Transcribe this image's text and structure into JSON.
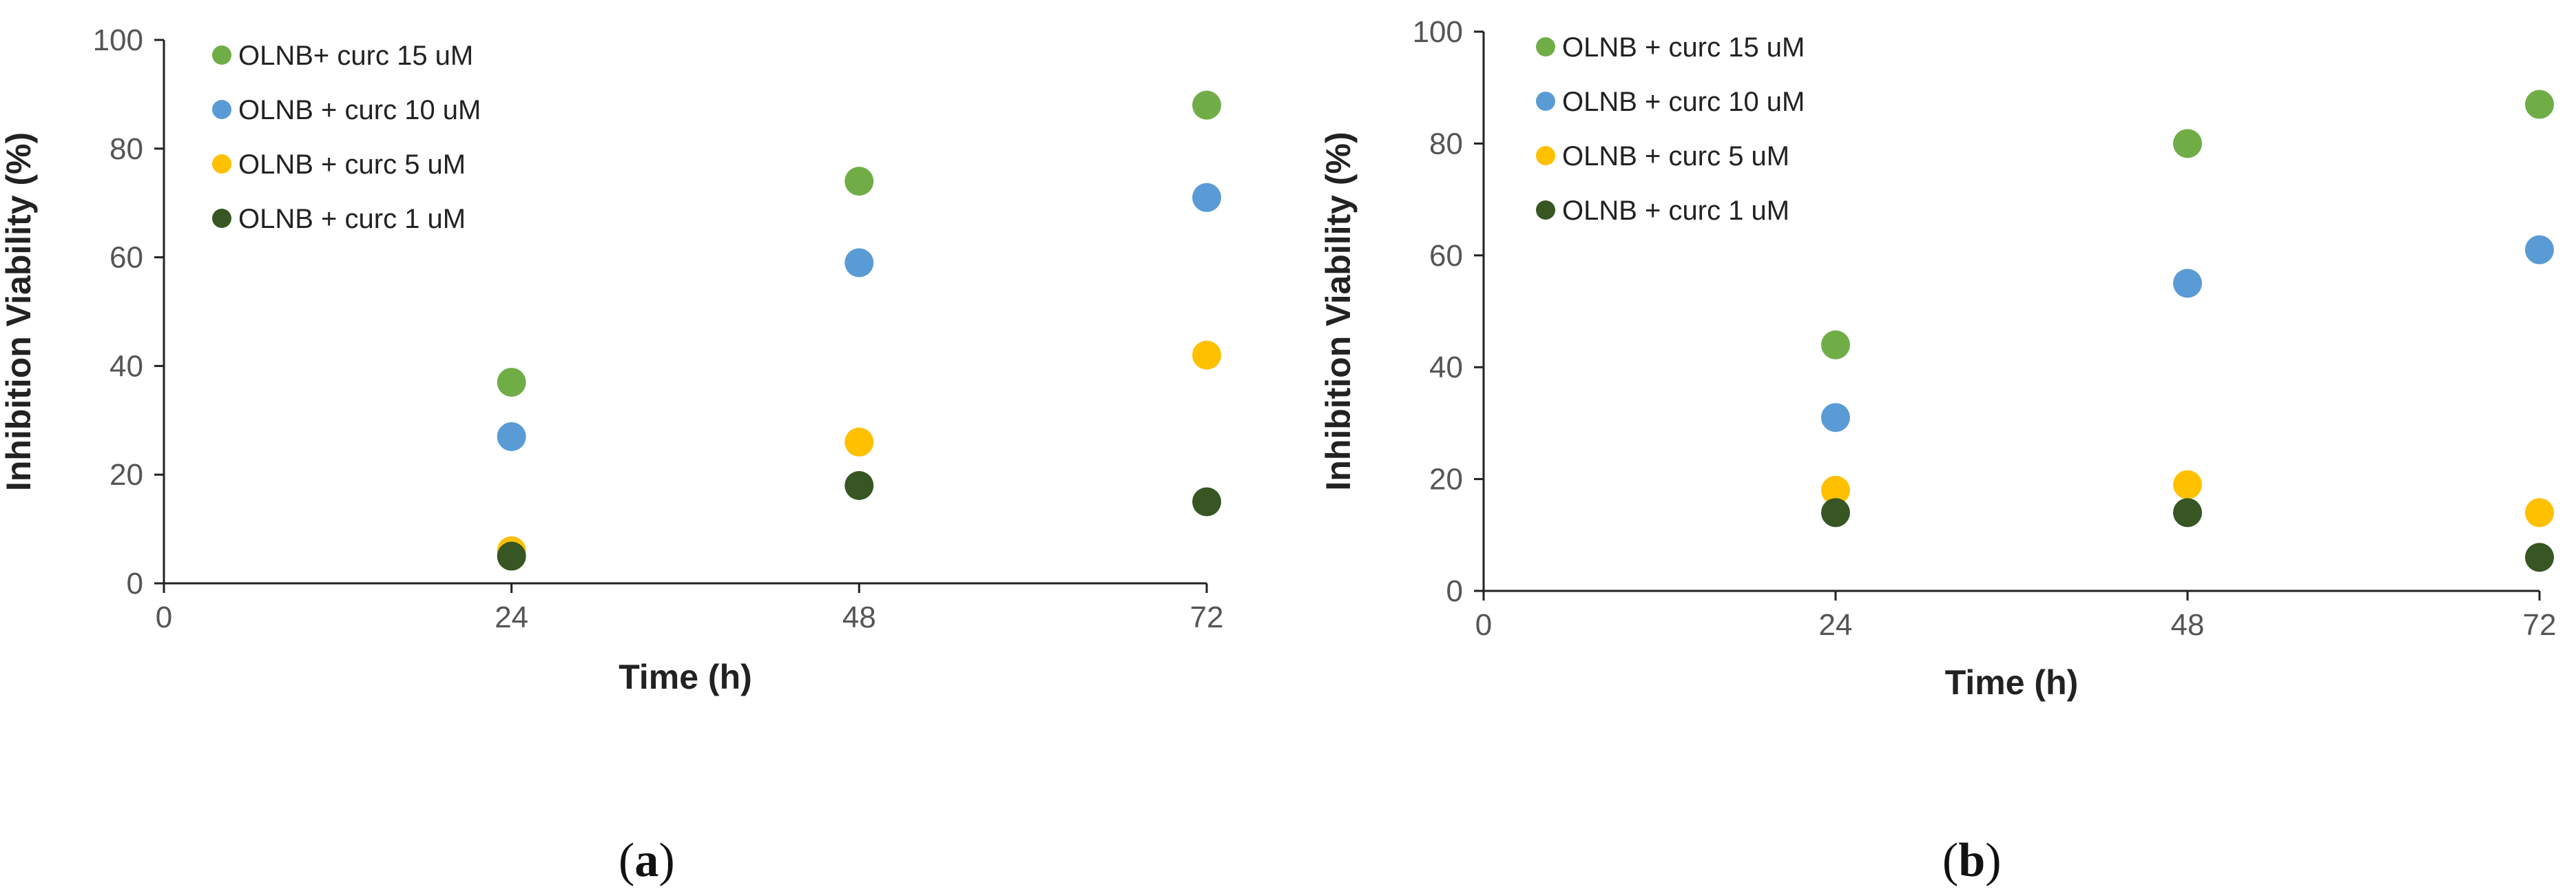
{
  "chart_data": [
    {
      "panel_label": "(a)",
      "panel_label_parts": [
        "(",
        "a",
        ")"
      ],
      "type": "scatter",
      "xlabel": "Time (h)",
      "ylabel": "Inhibition Viability (%)",
      "xlim": [
        0,
        72
      ],
      "ylim": [
        0,
        100
      ],
      "x_ticks": [
        0,
        24,
        48,
        72
      ],
      "y_ticks": [
        0,
        20,
        40,
        60,
        80,
        100
      ],
      "grid": false,
      "legend_position": "top-left",
      "series": [
        {
          "name": "OLNB+ curc 15 uM",
          "color": "#70ad47",
          "x": [
            24,
            48,
            72
          ],
          "y": [
            37,
            74,
            88
          ]
        },
        {
          "name": "OLNB + curc 10 uM",
          "color": "#5b9bd5",
          "x": [
            24,
            48,
            72
          ],
          "y": [
            27,
            59,
            71
          ]
        },
        {
          "name": "OLNB + curc 5 uM",
          "color": "#ffc000",
          "x": [
            24,
            48,
            72
          ],
          "y": [
            6,
            26,
            42
          ]
        },
        {
          "name": "OLNB + curc 1 uM",
          "color": "#375623",
          "x": [
            24,
            48,
            72
          ],
          "y": [
            5,
            18,
            15
          ]
        }
      ]
    },
    {
      "panel_label": "(b)",
      "panel_label_parts": [
        "(",
        "b",
        ")"
      ],
      "type": "scatter",
      "xlabel": "Time (h)",
      "ylabel": "Inhibition Viability (%)",
      "xlim": [
        0,
        72
      ],
      "ylim": [
        0,
        100
      ],
      "x_ticks": [
        0,
        24,
        48,
        72
      ],
      "y_ticks": [
        0,
        20,
        40,
        60,
        80,
        100
      ],
      "grid": false,
      "legend_position": "top-left",
      "series": [
        {
          "name": "OLNB + curc 15 uM",
          "color": "#70ad47",
          "x": [
            24,
            48,
            72
          ],
          "y": [
            44,
            80,
            87
          ]
        },
        {
          "name": "OLNB + curc 10 uM",
          "color": "#5b9bd5",
          "x": [
            24,
            48,
            72
          ],
          "y": [
            31,
            55,
            61
          ]
        },
        {
          "name": "OLNB + curc 5 uM",
          "color": "#ffc000",
          "x": [
            24,
            48,
            72
          ],
          "y": [
            18,
            19,
            14
          ]
        },
        {
          "name": "OLNB + curc 1 uM",
          "color": "#375623",
          "x": [
            24,
            48,
            72
          ],
          "y": [
            14,
            14,
            6
          ]
        }
      ]
    }
  ]
}
